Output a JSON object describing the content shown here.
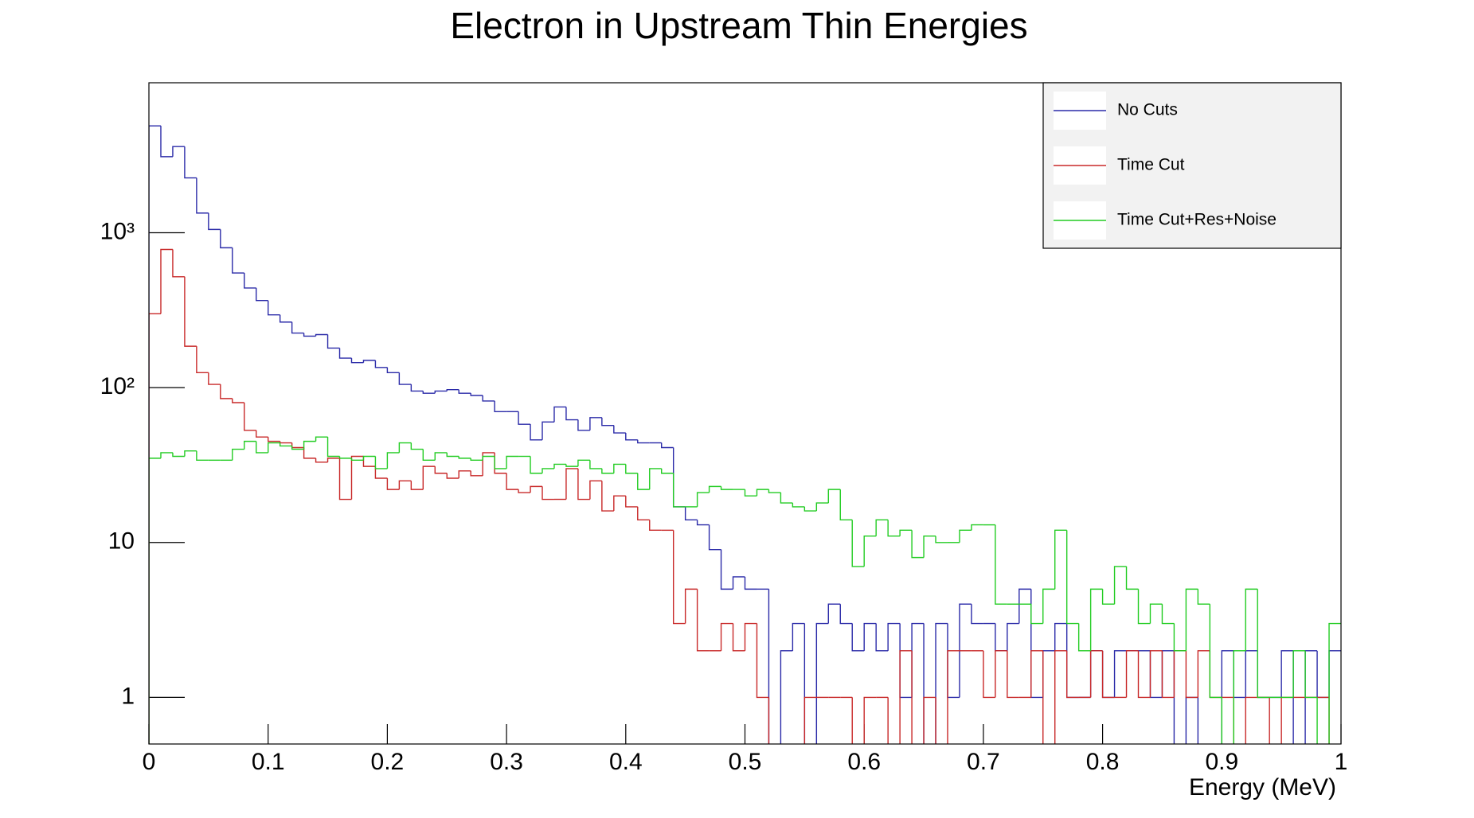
{
  "chart_data": {
    "type": "histogram",
    "title": "Electron in Upstream Thin Energies",
    "x_label": "Energy (MeV)",
    "log_y": true,
    "legend_position": "top right",
    "bins": [
      0,
      0.01,
      0.02,
      0.03,
      0.04,
      0.05,
      0.06,
      0.07,
      0.08,
      0.09,
      0.1,
      0.11,
      0.12,
      0.13,
      0.14,
      0.15,
      0.16,
      0.17,
      0.18,
      0.19,
      0.2,
      0.21,
      0.22,
      0.23,
      0.24,
      0.25,
      0.26,
      0.27,
      0.28,
      0.29,
      0.3,
      0.31,
      0.32,
      0.33,
      0.34,
      0.35,
      0.36,
      0.37,
      0.38,
      0.39,
      0.4,
      0.41,
      0.42,
      0.43,
      0.44,
      0.45,
      0.46,
      0.47,
      0.48,
      0.49,
      0.5,
      0.51,
      0.52,
      0.53,
      0.54,
      0.55,
      0.56,
      0.57,
      0.58,
      0.59,
      0.6,
      0.61,
      0.62,
      0.63,
      0.64,
      0.65,
      0.66,
      0.67,
      0.68,
      0.69,
      0.7,
      0.71,
      0.72,
      0.73,
      0.74,
      0.75,
      0.76,
      0.77,
      0.78,
      0.79,
      0.8,
      0.81,
      0.82,
      0.83,
      0.84,
      0.85,
      0.86,
      0.87,
      0.88,
      0.89,
      0.9,
      0.91,
      0.92,
      0.93,
      0.94,
      0.95,
      0.96,
      0.97,
      0.98,
      0.99,
      1
    ],
    "series": [
      {
        "name": "No Cuts",
        "color": "#2a2aa8",
        "values": [
          4900,
          3100,
          3600,
          2260,
          1340,
          1050,
          800,
          550,
          440,
          365,
          295,
          265,
          225,
          215,
          220,
          180,
          155,
          145,
          150,
          135,
          125,
          105,
          95,
          92,
          95,
          97,
          92,
          89,
          82,
          70,
          70,
          58,
          46,
          60,
          75,
          62,
          53,
          64,
          57,
          51,
          46,
          44,
          44,
          41,
          17,
          14,
          13,
          9,
          5,
          6,
          5,
          5,
          0,
          2,
          3,
          0,
          3,
          4,
          3,
          2,
          3,
          2,
          3,
          1,
          3,
          0,
          3,
          1,
          4,
          3,
          3,
          2,
          3,
          5,
          1,
          2,
          3,
          1,
          1,
          2,
          1,
          2,
          2,
          2,
          1,
          2,
          0,
          1,
          0,
          0,
          2,
          1,
          2,
          1,
          1,
          2,
          0,
          2,
          1,
          2
        ]
      },
      {
        "name": "Time Cut",
        "color": "#c82828",
        "values": [
          300,
          780,
          520,
          185,
          125,
          105,
          85,
          80,
          53,
          48,
          45,
          44,
          41,
          35,
          33,
          35,
          19,
          36,
          31,
          26,
          22,
          25,
          22,
          31,
          28,
          26,
          29,
          27,
          38,
          28,
          22,
          21,
          23,
          19,
          19,
          30,
          19,
          25,
          16,
          20,
          17,
          14,
          12,
          12,
          3,
          5,
          2,
          2,
          3,
          2,
          3,
          1,
          0,
          0,
          0,
          1,
          1,
          1,
          1,
          0,
          1,
          1,
          0,
          2,
          0,
          1,
          0,
          2,
          2,
          2,
          1,
          2,
          1,
          1,
          2,
          0,
          2,
          1,
          1,
          2,
          1,
          1,
          2,
          1,
          2,
          1,
          2,
          1,
          2,
          1,
          1,
          0,
          1,
          1,
          0,
          1,
          1,
          1,
          1,
          0
        ]
      },
      {
        "name": "Time Cut+Res+Noise",
        "color": "#22cc22",
        "values": [
          35,
          38,
          36,
          39,
          34,
          34,
          34,
          40,
          45,
          38,
          44,
          42,
          40,
          45,
          48,
          36,
          35,
          34,
          36,
          30,
          38,
          44,
          40,
          34,
          38,
          36,
          35,
          34,
          36,
          30,
          36,
          36,
          28,
          30,
          32,
          31,
          34,
          30,
          28,
          32,
          28,
          22,
          30,
          28,
          17,
          17,
          21,
          23,
          22,
          22,
          20,
          22,
          21,
          18,
          17,
          16,
          18,
          22,
          14,
          7,
          11,
          14,
          11,
          12,
          8,
          11,
          10,
          10,
          12,
          13,
          13,
          4,
          4,
          4,
          3,
          5,
          12,
          3,
          2,
          5,
          4,
          7,
          5,
          3,
          4,
          3,
          2,
          5,
          4,
          1,
          0,
          2,
          5,
          1,
          1,
          1,
          2,
          1,
          0,
          3
        ]
      }
    ],
    "xlim": [
      0,
      1
    ],
    "xticks": [
      0,
      0.1,
      0.2,
      0.3,
      0.4,
      0.5,
      0.6,
      0.7,
      0.8,
      0.9,
      1
    ],
    "ylim": [
      0.5,
      9300
    ],
    "yticks": [
      1,
      10,
      {
        "value": 100,
        "label": "10²"
      },
      {
        "value": 1000,
        "label": "10³"
      }
    ]
  }
}
